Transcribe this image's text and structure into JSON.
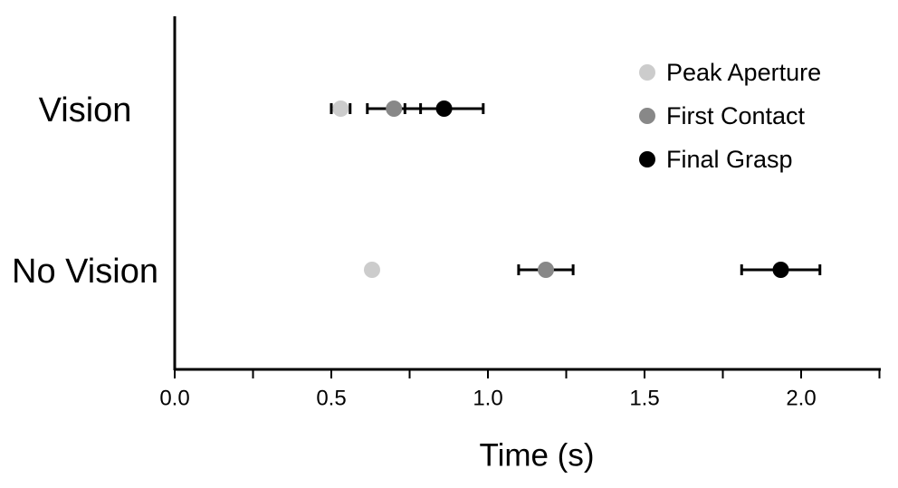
{
  "chart_data": {
    "type": "dot_error",
    "x_label": "Time (s)",
    "categories": [
      "Vision",
      "No Vision"
    ],
    "xlim": [
      0,
      2.25
    ],
    "xticks": [
      {
        "value": 0,
        "label": "0.0"
      },
      0.5,
      {
        "value": 1,
        "label": "1.0"
      },
      1.5,
      {
        "value": 2,
        "label": "2.0"
      }
    ],
    "xminor_ticks": [
      0.25,
      0.75,
      1.25,
      1.75,
      2.25
    ],
    "legend": "upper right",
    "series": [
      {
        "name": "Peak Aperture",
        "color": "#cccccc",
        "values": [
          0.53,
          0.63
        ],
        "errors": [
          0.03,
          0.01
        ]
      },
      {
        "name": "First Contact",
        "color": "#888888",
        "values": [
          0.7,
          1.185
        ],
        "errors": [
          0.085,
          0.087
        ]
      },
      {
        "name": "Final Grasp",
        "color": "#000000",
        "values": [
          0.86,
          1.935
        ],
        "errors": [
          0.125,
          0.125
        ]
      }
    ]
  }
}
